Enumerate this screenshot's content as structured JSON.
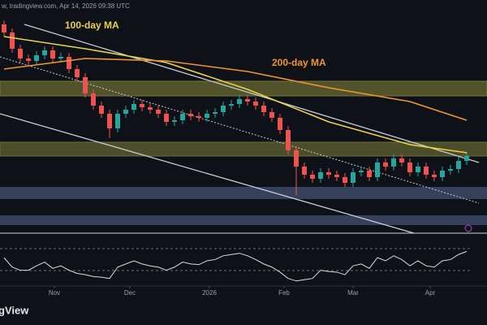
{
  "header": "w, tradingview.com, Apr 14, 2026 09:38 UTC",
  "logo": "gView",
  "chart_data": {
    "type": "candlestick",
    "xlim": [
      0,
      58
    ],
    "xticks": [
      {
        "value": 6.7,
        "label": "Nov"
      },
      {
        "value": 16,
        "label": "Dec"
      },
      {
        "value": 25.8,
        "label": "2026"
      },
      {
        "value": 35,
        "label": "Feb"
      },
      {
        "value": 43.5,
        "label": "Mar"
      },
      {
        "value": 53,
        "label": "Apr"
      }
    ],
    "ylim": [
      0,
      265
    ],
    "up_color": "#26a69a",
    "down_color": "#ef5350",
    "open": [
      255,
      245,
      225,
      213,
      210,
      217,
      223,
      213,
      215,
      200,
      190,
      170,
      155,
      145,
      127,
      145,
      150,
      157,
      153,
      150,
      145,
      135,
      137,
      145,
      142,
      140,
      145,
      147,
      155,
      157,
      163,
      160,
      155,
      147,
      140,
      125,
      100,
      80,
      70,
      65,
      73,
      70,
      67,
      60,
      73,
      75,
      67,
      85,
      80,
      90,
      85,
      73,
      80,
      70,
      67,
      75,
      77,
      87
    ],
    "high": [
      260,
      250,
      230,
      218,
      222,
      228,
      228,
      220,
      220,
      205,
      195,
      175,
      160,
      150,
      150,
      155,
      162,
      162,
      158,
      155,
      150,
      142,
      150,
      150,
      147,
      150,
      152,
      160,
      162,
      168,
      168,
      165,
      160,
      152,
      145,
      130,
      105,
      85,
      75,
      78,
      78,
      75,
      72,
      78,
      80,
      80,
      90,
      90,
      95,
      95,
      90,
      85,
      85,
      75,
      80,
      82,
      92,
      98
    ],
    "low": [
      240,
      220,
      208,
      205,
      205,
      212,
      208,
      208,
      195,
      185,
      165,
      150,
      140,
      115,
      122,
      140,
      145,
      148,
      145,
      140,
      130,
      130,
      132,
      137,
      135,
      135,
      140,
      142,
      150,
      152,
      155,
      150,
      142,
      135,
      120,
      95,
      45,
      65,
      60,
      60,
      65,
      62,
      55,
      55,
      68,
      62,
      62,
      75,
      75,
      80,
      68,
      68,
      65,
      62,
      62,
      70,
      72,
      82
    ],
    "close": [
      245,
      225,
      213,
      210,
      217,
      223,
      213,
      215,
      200,
      190,
      170,
      155,
      145,
      127,
      145,
      150,
      157,
      153,
      150,
      145,
      135,
      137,
      145,
      142,
      140,
      145,
      147,
      155,
      157,
      163,
      160,
      155,
      147,
      140,
      125,
      100,
      80,
      70,
      65,
      73,
      70,
      67,
      60,
      73,
      75,
      67,
      85,
      80,
      90,
      85,
      73,
      80,
      70,
      67,
      75,
      77,
      87,
      93
    ],
    "lines": [
      {
        "name": "100-day MA",
        "color": "#e8d34a",
        "x": [
          0,
          10,
          20,
          30,
          40,
          50,
          57
        ],
        "values": [
          240,
          225,
          208,
          175,
          135,
          107,
          97
        ]
      },
      {
        "name": "200-day MA",
        "color": "#f0962e",
        "x": [
          0,
          10,
          20,
          30,
          40,
          50,
          57
        ],
        "values": [
          200,
          213,
          210,
          197,
          177,
          160,
          137
        ]
      }
    ],
    "rsi": {
      "ylim": [
        10,
        90
      ],
      "color": "#d8dbe3",
      "values": [
        55,
        40,
        35,
        35,
        42,
        48,
        38,
        42,
        35,
        30,
        28,
        25,
        24,
        22,
        40,
        45,
        50,
        45,
        42,
        40,
        35,
        40,
        48,
        45,
        44,
        50,
        52,
        58,
        60,
        62,
        58,
        52,
        45,
        40,
        32,
        22,
        18,
        20,
        22,
        35,
        33,
        32,
        28,
        42,
        45,
        38,
        55,
        50,
        58,
        52,
        42,
        50,
        42,
        40,
        50,
        52,
        60,
        65
      ]
    }
  }
}
